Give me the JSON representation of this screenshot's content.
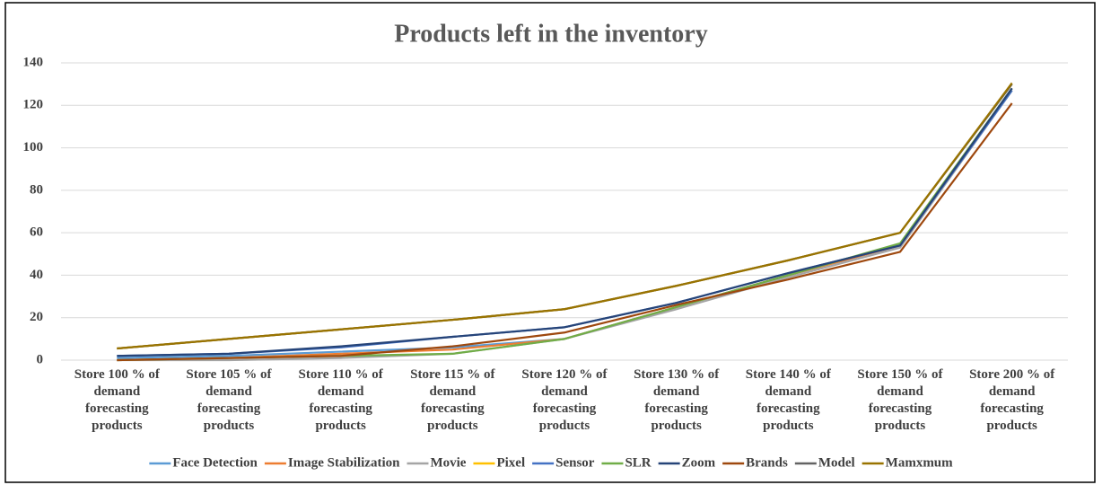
{
  "chart_data": {
    "type": "line",
    "title": "Products left in the inventory",
    "categories": [
      "Store 100 % of demand forecasting products",
      "Store 105 % of demand forecasting products",
      "Store 110 % of demand forecasting products",
      "Store 115 % of demand forecasting products",
      "Store 120 % of demand forecasting products",
      "Store 130 % of demand forecasting products",
      "Store 140 % of demand forecasting products",
      "Store 150 % of demand forecasting products",
      "Store 200 % of demand forecasting products"
    ],
    "series": [
      {
        "name": "Face Detection",
        "color": "#5b9bd5",
        "values": [
          1,
          2,
          4,
          6,
          10,
          25,
          40,
          54,
          128
        ]
      },
      {
        "name": "Image Stabilization",
        "color": "#ed7d31",
        "values": [
          0,
          1,
          3,
          5,
          10,
          25,
          40,
          54,
          128
        ]
      },
      {
        "name": "Movie",
        "color": "#a5a5a5",
        "values": [
          0,
          0,
          1,
          3,
          10,
          24,
          39,
          53,
          127
        ]
      },
      {
        "name": "Pixel",
        "color": "#ffc000",
        "values": [
          5.5,
          10,
          14.5,
          19,
          24,
          35,
          47,
          60,
          130
        ]
      },
      {
        "name": "Sensor",
        "color": "#4472c4",
        "values": [
          2,
          3,
          6,
          11,
          15.5,
          27,
          41,
          54,
          127
        ]
      },
      {
        "name": "SLR",
        "color": "#70ad47",
        "values": [
          0,
          1,
          2,
          3,
          10,
          25,
          40,
          55,
          128
        ]
      },
      {
        "name": "Zoom",
        "color": "#264478",
        "values": [
          2,
          3,
          6.5,
          11,
          15.5,
          27,
          41,
          54,
          128
        ]
      },
      {
        "name": "Brands",
        "color": "#9e480e",
        "values": [
          0,
          1,
          2,
          6.5,
          13,
          26,
          38,
          51,
          121
        ]
      },
      {
        "name": "Model",
        "color": "#636363",
        "values": [
          5.5,
          10,
          14.5,
          19,
          24,
          35,
          47,
          60,
          130
        ]
      },
      {
        "name": "Mamxmum",
        "color": "#997300",
        "values": [
          5.5,
          10,
          14.5,
          19,
          24,
          35,
          47,
          60,
          130.5
        ]
      }
    ],
    "ylim": [
      0,
      140
    ],
    "yticks": [
      0,
      20,
      40,
      60,
      80,
      100,
      120,
      140
    ],
    "grid": true,
    "legend": "bottom"
  }
}
